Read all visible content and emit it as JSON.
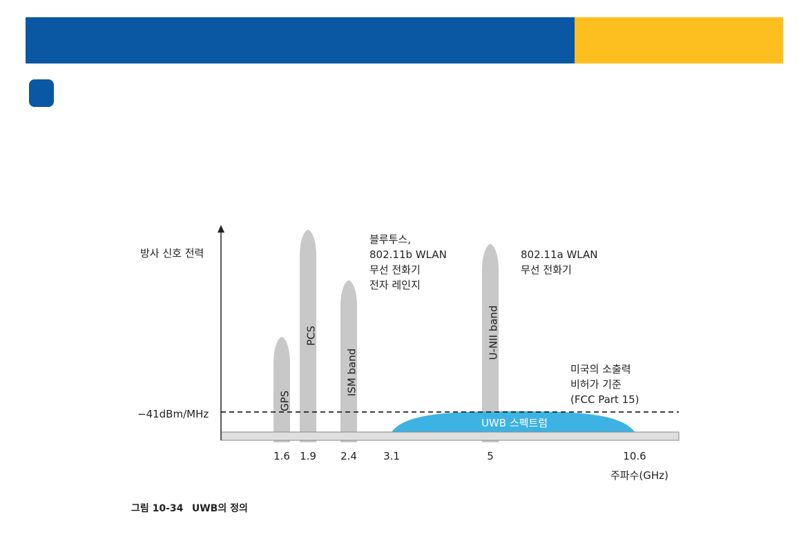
{
  "header": {
    "blue_color": "#0a57a3",
    "yellow_color": "#fdbe20",
    "badge_color": "#0a57a3"
  },
  "diagram": {
    "y_axis_label": "방사 신호 전력",
    "x_axis_label": "주파수(GHz)",
    "threshold_label": "−41dBm/MHz",
    "ticks": [
      {
        "label": "1.6",
        "ghz": 1.6
      },
      {
        "label": "1.9",
        "ghz": 1.9
      },
      {
        "label": "2.4",
        "ghz": 2.4
      },
      {
        "label": "3.1",
        "ghz": 3.1
      },
      {
        "label": "5",
        "ghz": 5
      },
      {
        "label": "10.6",
        "ghz": 10.6
      }
    ],
    "bands": [
      {
        "name": "GPS",
        "ghz": 1.6,
        "level": 0.47
      },
      {
        "name": "PCS",
        "ghz": 1.9,
        "level": 1.0
      },
      {
        "name": "ISM band",
        "ghz": 2.4,
        "level": 0.75
      },
      {
        "name": "U-NII band",
        "ghz": 5,
        "level": 0.93
      }
    ],
    "uwb": {
      "label": "UWB 스펙트럼",
      "start_ghz": 3.1,
      "end_ghz": 10.6,
      "color": "#3db3e3"
    },
    "band_color": "#c8c8c8",
    "annotations": {
      "bluetooth": [
        "블루투스,",
        "802.11b WLAN",
        "무선 전화기",
        "전자 레인지"
      ],
      "wlan_a": [
        "802.11a WLAN",
        "무선 전화기"
      ],
      "fcc": [
        "미국의 소출력",
        "비허가 기준",
        "(FCC Part 15)"
      ]
    }
  },
  "caption": {
    "number": "그림 10-34",
    "title": "UWB의 정의"
  }
}
